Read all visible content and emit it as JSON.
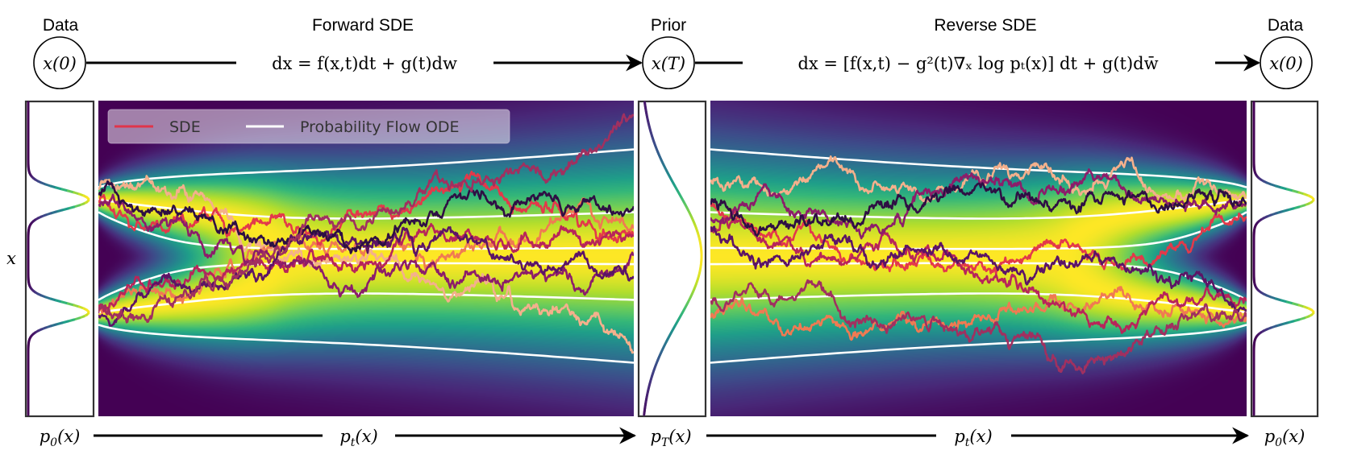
{
  "titles": {
    "data_left": "Data",
    "forward": "Forward SDE",
    "prior": "Prior",
    "reverse": "Reverse SDE",
    "data_right": "Data"
  },
  "nodes": {
    "x0_left": "x(0)",
    "xT": "x(T)",
    "x0_right": "x(0)"
  },
  "equations": {
    "forward": "dx = f(x,t)dt + g(t)dw",
    "reverse": "dx = [f(x,t) − g²(t)∇ₓ log pₜ(x)] dt + g(t)dw̄"
  },
  "axis": {
    "y_label": "x"
  },
  "bottom": {
    "p0_left": {
      "base": "p",
      "sub": "0",
      "arg": "(x)"
    },
    "pt_forward": {
      "base": "p",
      "sub": "t",
      "arg": "(x)"
    },
    "pT": {
      "base": "p",
      "sub": "T",
      "arg": "(x)"
    },
    "pt_reverse": {
      "base": "p",
      "sub": "t",
      "arg": "(x)"
    },
    "p0_right": {
      "base": "p",
      "sub": "0",
      "arg": "(x)"
    }
  },
  "legend": {
    "sde_label": "SDE",
    "ode_label": "Probability Flow ODE",
    "position": "top-left"
  },
  "colors": {
    "sde_legend": "#e0354b",
    "ode_lines": "#ffffff",
    "heatmap_colormap": "viridis",
    "trajectories": [
      "#f4b08c",
      "#f07a52",
      "#e3394a",
      "#b8255a",
      "#8c1d6a",
      "#5c1466",
      "#2e0f44",
      "#a03060"
    ]
  }
}
